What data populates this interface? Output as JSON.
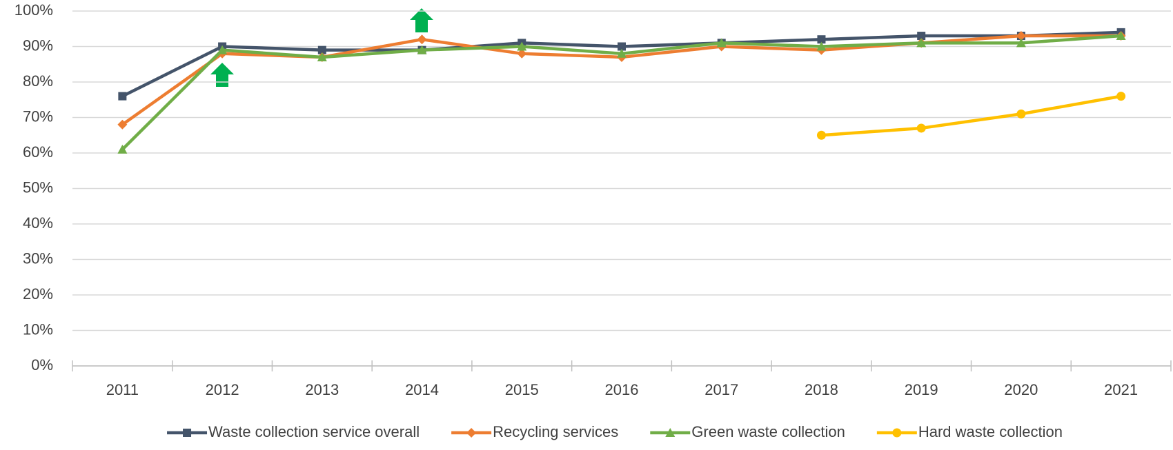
{
  "chart_data": {
    "type": "line",
    "categories": [
      "2011",
      "2012",
      "2013",
      "2014",
      "2015",
      "2016",
      "2017",
      "2018",
      "2019",
      "2020",
      "2021"
    ],
    "series": [
      {
        "name": "Waste collection service overall",
        "color": "#44546a",
        "marker": "square",
        "values": [
          76,
          90,
          89,
          89,
          91,
          90,
          91,
          92,
          93,
          93,
          94
        ]
      },
      {
        "name": "Recycling services",
        "color": "#ed7d31",
        "marker": "diamond",
        "values": [
          68,
          88,
          87,
          92,
          88,
          87,
          90,
          89,
          91,
          93,
          93
        ]
      },
      {
        "name": "Green waste collection",
        "color": "#70ad47",
        "marker": "triangle",
        "values": [
          61,
          89,
          87,
          89,
          90,
          88,
          91,
          90,
          91,
          91,
          93
        ]
      },
      {
        "name": "Hard waste collection",
        "color": "#ffc000",
        "marker": "circle",
        "values": [
          null,
          null,
          null,
          null,
          null,
          null,
          null,
          65,
          67,
          71,
          76
        ]
      }
    ],
    "ylim": [
      0,
      100
    ],
    "yticks": [
      {
        "value": 0,
        "label": "0%"
      },
      {
        "value": 10,
        "label": "10%"
      },
      {
        "value": 20,
        "label": "20%"
      },
      {
        "value": 30,
        "label": "30%"
      },
      {
        "value": 40,
        "label": "40%"
      },
      {
        "value": 50,
        "label": "50%"
      },
      {
        "value": 60,
        "label": "60%"
      },
      {
        "value": 70,
        "label": "70%"
      },
      {
        "value": 80,
        "label": "80%"
      },
      {
        "value": 90,
        "label": "90%"
      },
      {
        "value": 100,
        "label": "100%"
      }
    ],
    "grid": true,
    "legend": "bottom"
  }
}
